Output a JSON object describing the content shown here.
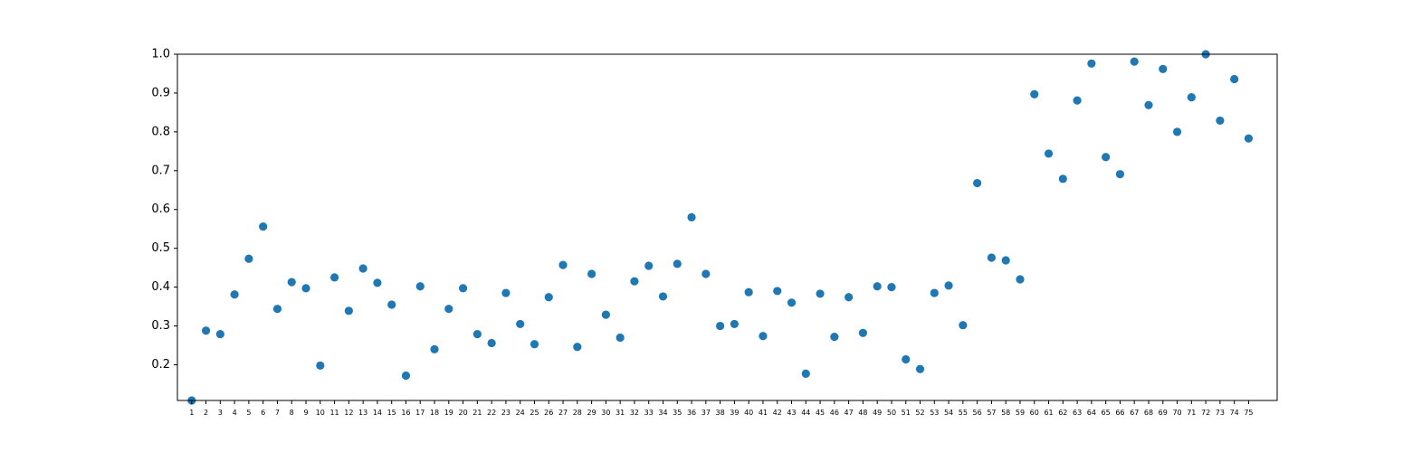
{
  "chart_data": {
    "type": "scatter",
    "title": "",
    "xlabel": "",
    "ylabel": "",
    "xlim": [
      0,
      77
    ],
    "ylim": [
      0.108,
      1.0
    ],
    "yticks": [
      "0.2",
      "0.3",
      "0.4",
      "0.5",
      "0.6",
      "0.7",
      "0.8",
      "0.9",
      "1.0"
    ],
    "grid": false,
    "legend": "none",
    "marker_color": "#1f77b4",
    "x": [
      1,
      2,
      3,
      4,
      5,
      6,
      7,
      8,
      9,
      10,
      11,
      12,
      13,
      14,
      15,
      16,
      17,
      18,
      19,
      20,
      21,
      22,
      23,
      24,
      25,
      26,
      27,
      28,
      29,
      30,
      31,
      32,
      33,
      34,
      35,
      36,
      37,
      38,
      39,
      40,
      41,
      42,
      43,
      44,
      45,
      46,
      47,
      48,
      49,
      50,
      51,
      52,
      53,
      54,
      55,
      56,
      57,
      58,
      59,
      60,
      61,
      62,
      63,
      64,
      65,
      66,
      67,
      68,
      69,
      70,
      71,
      72,
      73,
      74,
      75
    ],
    "xtick_labels": [
      "1",
      "2",
      "3",
      "4",
      "5",
      "6",
      "7",
      "8",
      "9",
      "10",
      "11",
      "12",
      "13",
      "14",
      "15",
      "16",
      "17",
      "18",
      "19",
      "20",
      "21",
      "22",
      "23",
      "24",
      "25",
      "26",
      "27",
      "28",
      "29",
      "30",
      "31",
      "32",
      "33",
      "34",
      "35",
      "36",
      "37",
      "38",
      "39",
      "40",
      "41",
      "42",
      "43",
      "44",
      "45",
      "46",
      "47",
      "48",
      "49",
      "50",
      "51",
      "52",
      "53",
      "54",
      "55",
      "56",
      "57",
      "58",
      "59",
      "60",
      "61",
      "62",
      "63",
      "64",
      "65",
      "66",
      "67",
      "68",
      "69",
      "70",
      "71",
      "72",
      "73",
      "74",
      "75"
    ],
    "y": [
      0.108,
      0.288,
      0.279,
      0.381,
      0.473,
      0.556,
      0.344,
      0.413,
      0.397,
      0.198,
      0.425,
      0.339,
      0.448,
      0.411,
      0.355,
      0.172,
      0.402,
      0.24,
      0.344,
      0.397,
      0.279,
      0.256,
      0.385,
      0.305,
      0.253,
      0.374,
      0.457,
      0.246,
      0.434,
      0.329,
      0.27,
      0.415,
      0.455,
      0.376,
      0.46,
      0.58,
      0.434,
      0.3,
      0.305,
      0.387,
      0.274,
      0.39,
      0.36,
      0.177,
      0.383,
      0.272,
      0.374,
      0.282,
      0.402,
      0.4,
      0.214,
      0.189,
      0.385,
      0.404,
      0.302,
      0.668,
      0.476,
      0.469,
      0.42,
      0.897,
      0.744,
      0.679,
      0.881,
      0.976,
      0.735,
      0.691,
      0.981,
      0.869,
      0.962,
      0.8,
      0.889,
      1.0,
      0.829,
      0.936,
      0.783
    ]
  }
}
